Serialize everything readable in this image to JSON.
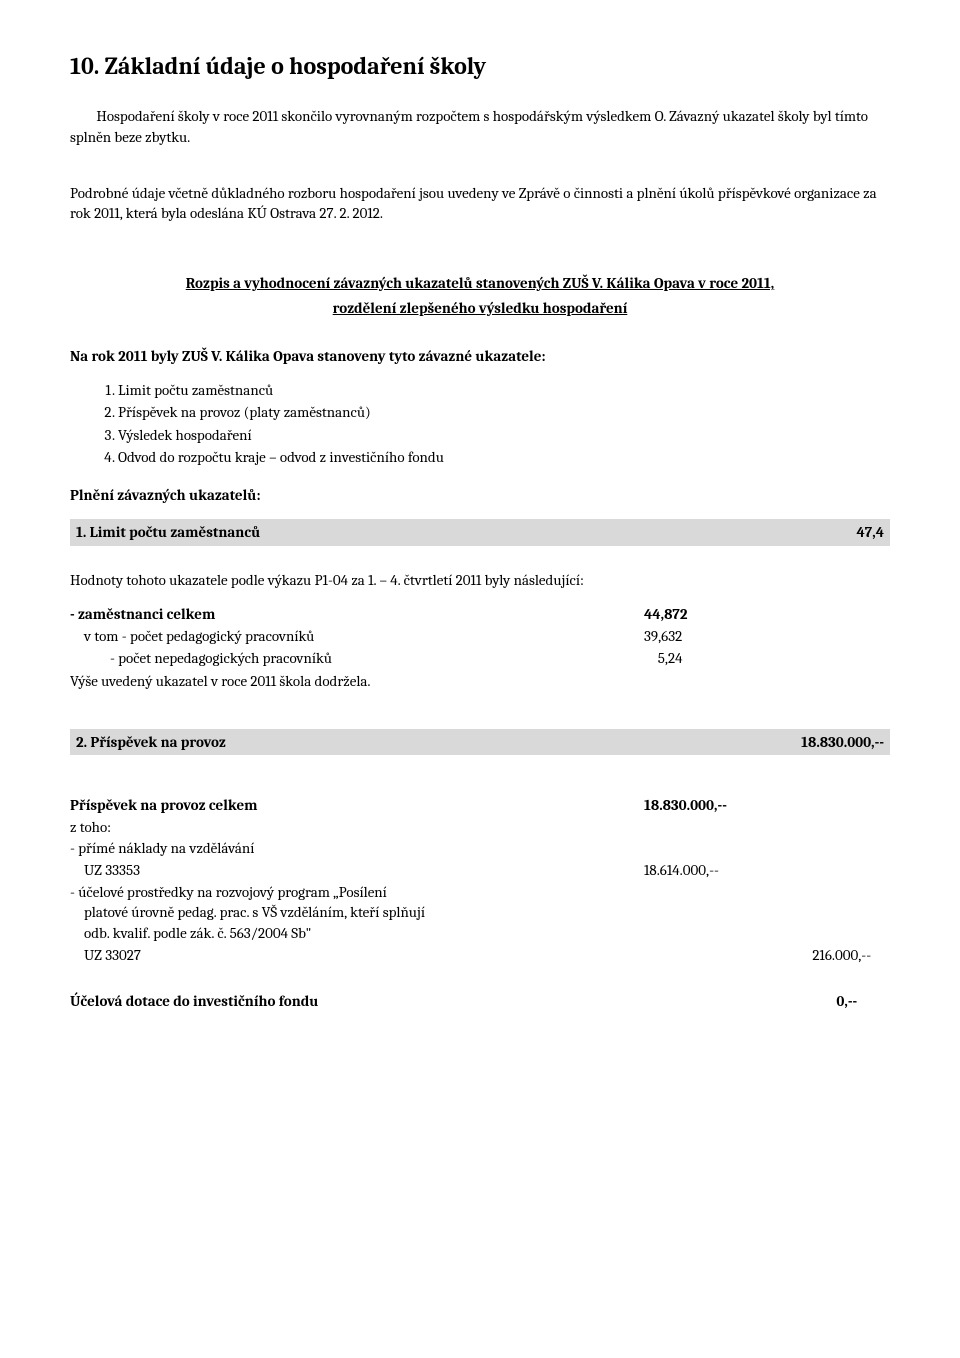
{
  "heading": "10. Základní údaje o hospodaření školy",
  "intro_p1": "Hospodaření školy v roce 2011 skončilo vyrovnaným rozpočtem s hospodářským výsledkem O. Závazný ukazatel školy byl tímto splněn beze zbytku.",
  "intro_p2": "Podrobné údaje včetně důkladného rozboru hospodaření jsou uvedeny ve Zprávě o činnosti a plnění úkolů příspěvkové organizace za rok 2011, která byla odeslána KÚ Ostrava 27. 2. 2012.",
  "rozpis_title": "Rozpis a vyhodnocení závazných ukazatelů stanovených ZUŠ V. Kálika Opava v roce 2011,",
  "rozpis_sub": "rozdělení zlepšeného výsledku hospodaření",
  "na_rok_label": "Na rok 2011 byly ZUŠ V. Kálika Opava stanoveny tyto závazné ukazatele:",
  "ukazatele": [
    "Limit počtu zaměstnanců",
    "Příspěvek na provoz (platy zaměstnanců)",
    "Výsledek hospodaření",
    "Odvod do rozpočtu kraje – odvod z investičního fondu"
  ],
  "plneni_label": "Plnění závazných ukazatelů:",
  "row1": {
    "label": "1. Limit počtu zaměstnanců",
    "value": "47,4"
  },
  "hodnoty_p": "Hodnoty tohoto ukazatele podle výkazu P1-04 za 1. – 4. čtvrtletí 2011 byly následující:",
  "zam": {
    "celkem": {
      "label": "- zaměstnanci celkem",
      "value": "44,872"
    },
    "ped": {
      "label": "v tom - počet pedagogický pracovníků",
      "value": "39,632"
    },
    "neped": {
      "label": "- počet nepedagogických pracovníků",
      "value": "5,24"
    },
    "note": "Výše uvedený ukazatel v roce 2011 škola dodržela."
  },
  "row2": {
    "label": "2. Příspěvek na provoz",
    "value": "18.830.000,--"
  },
  "prispevek": {
    "celkem": {
      "label": "Příspěvek na provoz celkem",
      "value": "18.830.000,--"
    },
    "ztoho": "z toho:",
    "l1": "- přímé náklady na vzdělávání",
    "l1b": {
      "label": "UZ 33353",
      "value": "18.614.000,--"
    },
    "l2a": "- účelové prostředky na rozvojový program „Posílení",
    "l2b": "platové úrovně pedag. prac. s VŠ vzděláním, kteří splňují",
    "l2c": "odb. kvalif. podle zák. č. 563/2004 Sb\"",
    "l2d": {
      "label": "UZ 33027",
      "value": "216.000,--"
    }
  },
  "ucelova": {
    "label": "Účelová dotace do investičního fondu",
    "value": "0,--"
  }
}
